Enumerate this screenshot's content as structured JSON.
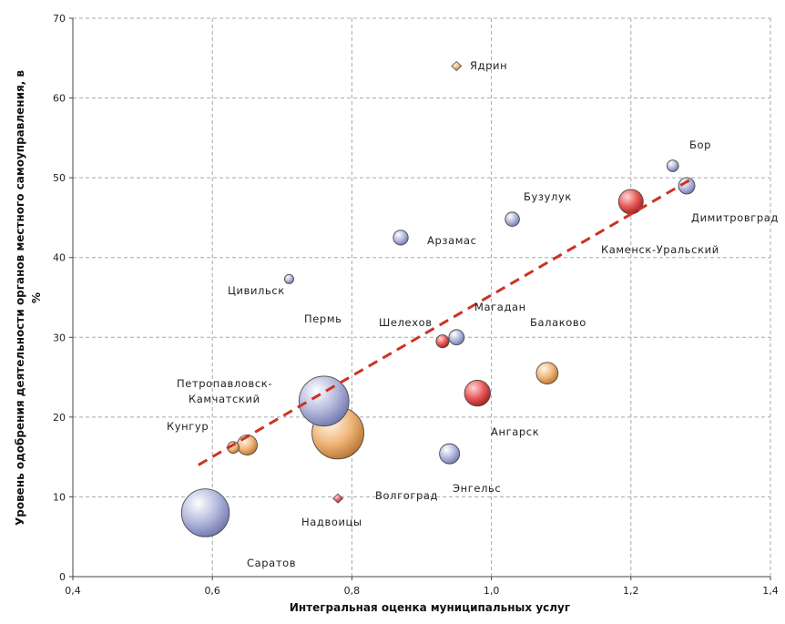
{
  "chart_data": {
    "type": "scatter",
    "subtype": "bubble",
    "xlabel": "Интегральная оценка муниципальных услуг",
    "ylabel_line1": "Уровень одобрения деятельности органов местного самоуправления, в",
    "ylabel_line2": "%",
    "xlim": [
      0.4,
      1.4
    ],
    "ylim": [
      0,
      70
    ],
    "x_ticks": [
      "0,4",
      "0,6",
      "0,8",
      "1,0",
      "1,2",
      "1,4"
    ],
    "y_ticks": [
      "0",
      "10",
      "20",
      "30",
      "40",
      "50",
      "60",
      "70"
    ],
    "grid": true,
    "colors": {
      "blue": "#b3b8dc",
      "orange": "#f0b67a",
      "red": "#e85858",
      "trend": "#cc3322",
      "grid": "#a8a8a8"
    },
    "trendline": {
      "x": [
        0.58,
        1.29
      ],
      "y": [
        14,
        50
      ]
    },
    "points": [
      {
        "label": "Ядрин",
        "x": 0.95,
        "y": 64.0,
        "size": 1,
        "color": "orange"
      },
      {
        "label": "Бор",
        "x": 1.26,
        "y": 51.5,
        "size": 2.0,
        "color": "blue"
      },
      {
        "label": "Димитровград",
        "x": 1.28,
        "y": 49.0,
        "size": 4.0,
        "color": "blue"
      },
      {
        "label": "Каменск-Уральский",
        "x": 1.2,
        "y": 47.0,
        "size": 9.0,
        "color": "red"
      },
      {
        "label": "Бузулук",
        "x": 1.03,
        "y": 44.8,
        "size": 3.0,
        "color": "blue"
      },
      {
        "label": "Арзамас",
        "x": 0.87,
        "y": 42.5,
        "size": 3.3,
        "color": "blue"
      },
      {
        "label": "Цивильск",
        "x": 0.71,
        "y": 37.3,
        "size": 1,
        "color": "blue"
      },
      {
        "label": "Магадан",
        "x": 0.95,
        "y": 30.0,
        "size": 3.5,
        "color": "blue"
      },
      {
        "label": "Шелехов",
        "x": 0.93,
        "y": 29.5,
        "size": 2.5,
        "color": "red"
      },
      {
        "label": "Балаково",
        "x": 1.08,
        "y": 25.5,
        "size": 7.0,
        "color": "orange"
      },
      {
        "label": "Ангарск",
        "x": 0.98,
        "y": 23.0,
        "size": 10.0,
        "color": "red"
      },
      {
        "label": "Пермь",
        "x": 0.76,
        "y": 22.0,
        "size": 37.0,
        "color": "blue"
      },
      {
        "label": "Волгоград",
        "x": 0.78,
        "y": 18.0,
        "size": 40.0,
        "color": "orange"
      },
      {
        "label": "Энгельс",
        "x": 0.94,
        "y": 15.4,
        "size": 6.0,
        "color": "blue"
      },
      {
        "label": "Кунгур",
        "x": 0.63,
        "y": 16.2,
        "size": 2.0,
        "color": "orange"
      },
      {
        "label": "Петропавловск-Камчатский",
        "x": 0.65,
        "y": 16.5,
        "size": 6.0,
        "color": "orange"
      },
      {
        "label": "Надвоицы",
        "x": 0.78,
        "y": 9.8,
        "size": 1,
        "color": "red"
      },
      {
        "label": "Саратов",
        "x": 0.59,
        "y": 8.0,
        "size": 34.0,
        "color": "blue"
      }
    ],
    "labels": [
      {
        "text": "Ядрин"
      },
      {
        "text": "Бор"
      },
      {
        "text": "Димитровград"
      },
      {
        "text": "Каменск-Уральский"
      },
      {
        "text": "Бузулук"
      },
      {
        "text": "Арзамас"
      },
      {
        "text": "Цивильск"
      },
      {
        "text": "Магадан"
      },
      {
        "text": "Шелехов"
      },
      {
        "text": "Пермь"
      },
      {
        "text": "Балаково"
      },
      {
        "text": "Петропавловск-"
      },
      {
        "text": "Камчатский"
      },
      {
        "text": "Кунгур"
      },
      {
        "text": "Ангарск"
      },
      {
        "text": "Энгельс"
      },
      {
        "text": "Волгоград"
      },
      {
        "text": "Надвоицы"
      },
      {
        "text": "Саратов"
      }
    ]
  }
}
